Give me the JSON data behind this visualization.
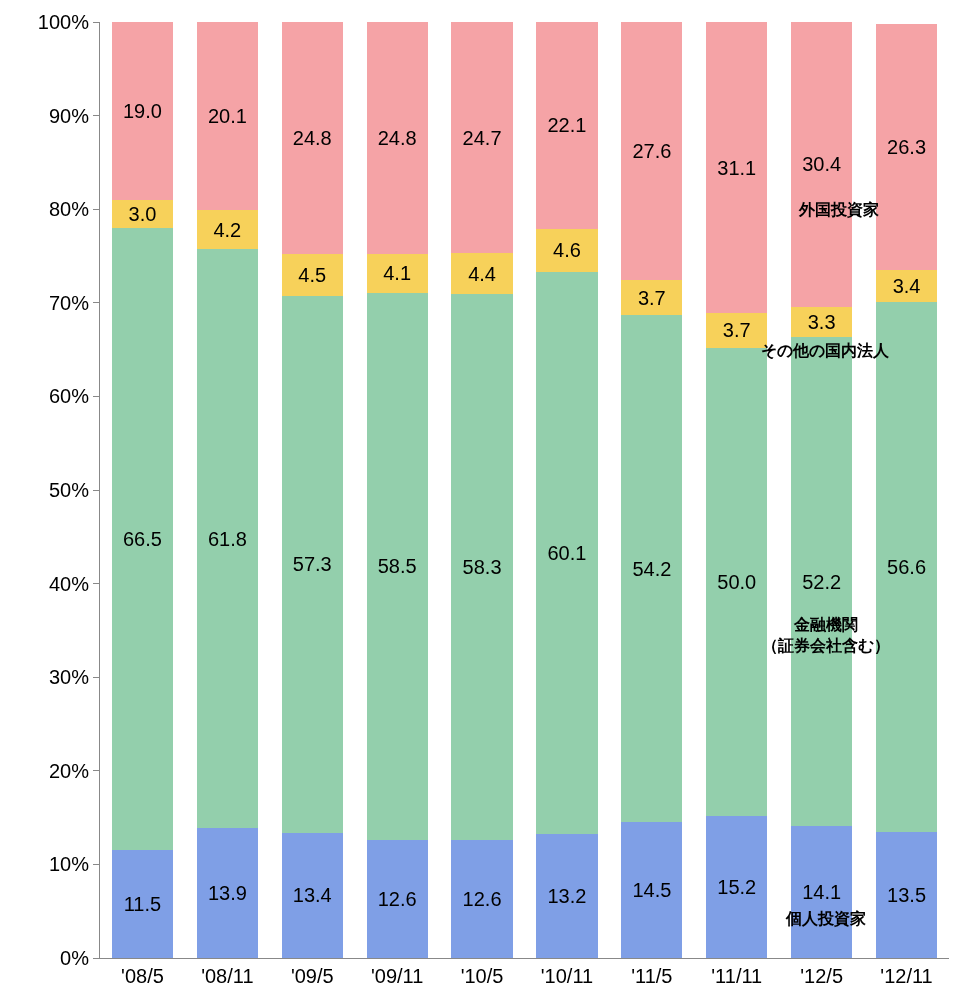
{
  "chart_data": {
    "type": "bar",
    "stacked": true,
    "legend": false,
    "categories": [
      "'08/5",
      "'08/11",
      "'09/5",
      "'09/11",
      "'10/5",
      "'10/11",
      "'11/5",
      "'11/11",
      "'12/5",
      "'12/11"
    ],
    "ylim": [
      0,
      100
    ],
    "yticks": [
      {
        "value": 0,
        "label": "0%"
      },
      {
        "value": 10,
        "label": "10%"
      },
      {
        "value": 20,
        "label": "20%"
      },
      {
        "value": 30,
        "label": "30%"
      },
      {
        "value": 40,
        "label": "40%"
      },
      {
        "value": 50,
        "label": "50%"
      },
      {
        "value": 60,
        "label": "60%"
      },
      {
        "value": 70,
        "label": "70%"
      },
      {
        "value": 80,
        "label": "80%"
      },
      {
        "value": 90,
        "label": "90%"
      },
      {
        "value": 100,
        "label": "100%"
      }
    ],
    "series": [
      {
        "name": "個人投資家",
        "color": "#7f9fe6",
        "values": [
          11.5,
          13.9,
          13.4,
          12.6,
          12.6,
          13.2,
          14.5,
          15.2,
          14.1,
          13.5
        ],
        "value_labels": [
          "11.5",
          "13.9",
          "13.4",
          "12.6",
          "12.6",
          "13.2",
          "14.5",
          "15.2",
          "14.1",
          "13.5"
        ]
      },
      {
        "name": "金融機関（証券会社含む）",
        "color": "#93cfac",
        "values": [
          66.5,
          61.8,
          57.3,
          58.5,
          58.3,
          60.1,
          54.2,
          50.0,
          52.2,
          56.6
        ],
        "value_labels": [
          "66.5",
          "61.8",
          "57.3",
          "58.5",
          "58.3",
          "60.1",
          "54.2",
          "50.0",
          "52.2",
          "56.6"
        ]
      },
      {
        "name": "その他の国内法人",
        "color": "#f7d15a",
        "values": [
          3.0,
          4.2,
          4.5,
          4.1,
          4.4,
          4.6,
          3.7,
          3.7,
          3.3,
          3.4
        ],
        "value_labels": [
          "3.0",
          "4.2",
          "4.5",
          "4.1",
          "4.4",
          "4.6",
          "3.7",
          "3.7",
          "3.3",
          "3.4"
        ]
      },
      {
        "name": "外国投資家",
        "color": "#f5a3a6",
        "values": [
          19.0,
          20.1,
          24.8,
          24.8,
          24.7,
          22.1,
          27.6,
          31.1,
          30.4,
          26.3
        ],
        "value_labels": [
          "19.0",
          "20.1",
          "24.8",
          "24.8",
          "24.7",
          "22.1",
          "27.6",
          "31.1",
          "30.4",
          "26.3"
        ]
      }
    ]
  }
}
